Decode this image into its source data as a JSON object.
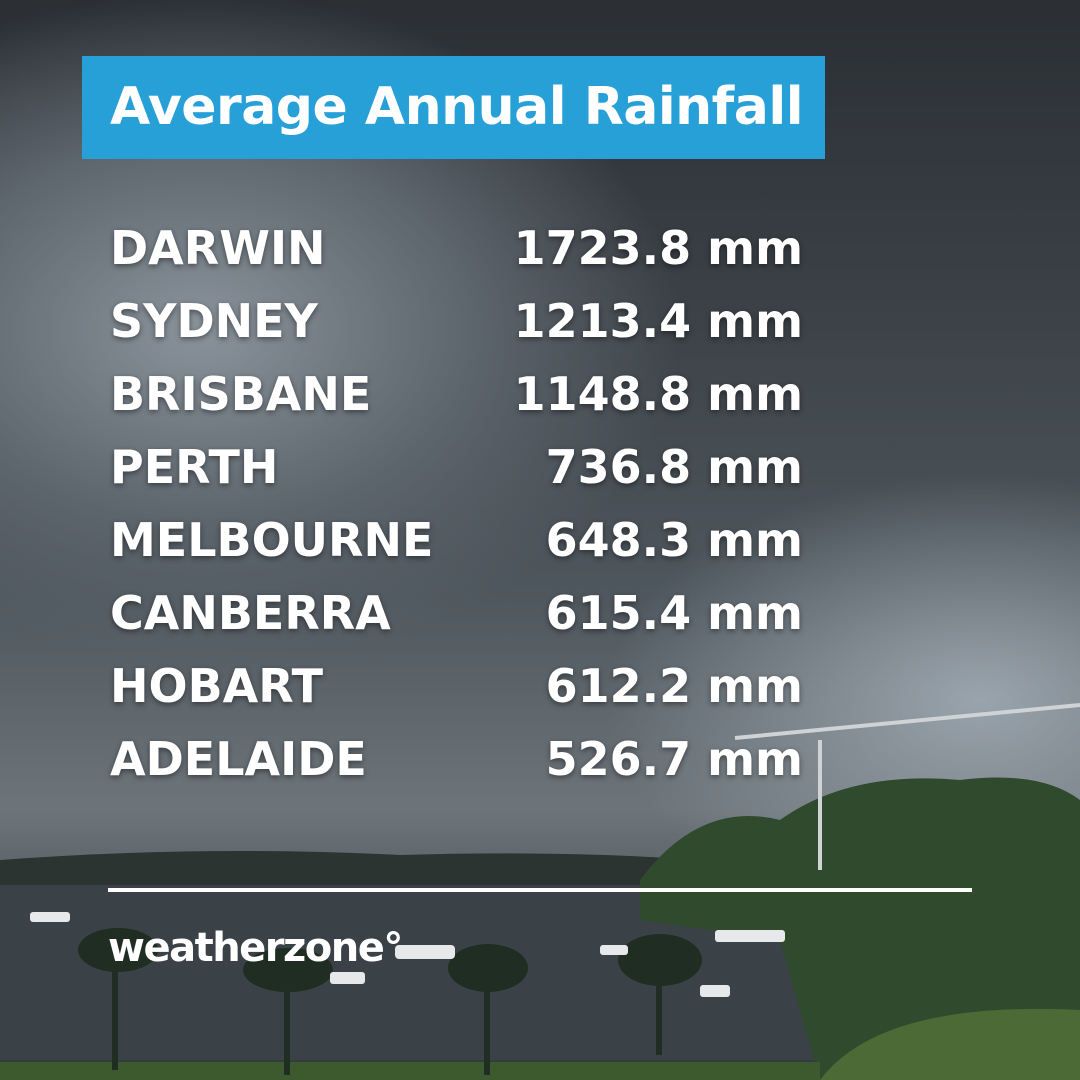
{
  "header": {
    "title": "Average Annual Rainfall"
  },
  "table": {
    "rows": [
      [
        "DARWIN",
        "1723.8 mm"
      ],
      [
        "SYDNEY",
        "1213.4 mm"
      ],
      [
        "BRISBANE",
        "1148.8 mm"
      ],
      [
        "PERTH",
        "736.8 mm"
      ],
      [
        "MELBOURNE",
        "648.3 mm"
      ],
      [
        "CANBERRA",
        "615.4 mm"
      ],
      [
        "HOBART",
        "612.2 mm"
      ],
      [
        "ADELAIDE",
        "526.7 mm"
      ]
    ]
  },
  "footer": {
    "brand": "weatherzone°"
  }
}
